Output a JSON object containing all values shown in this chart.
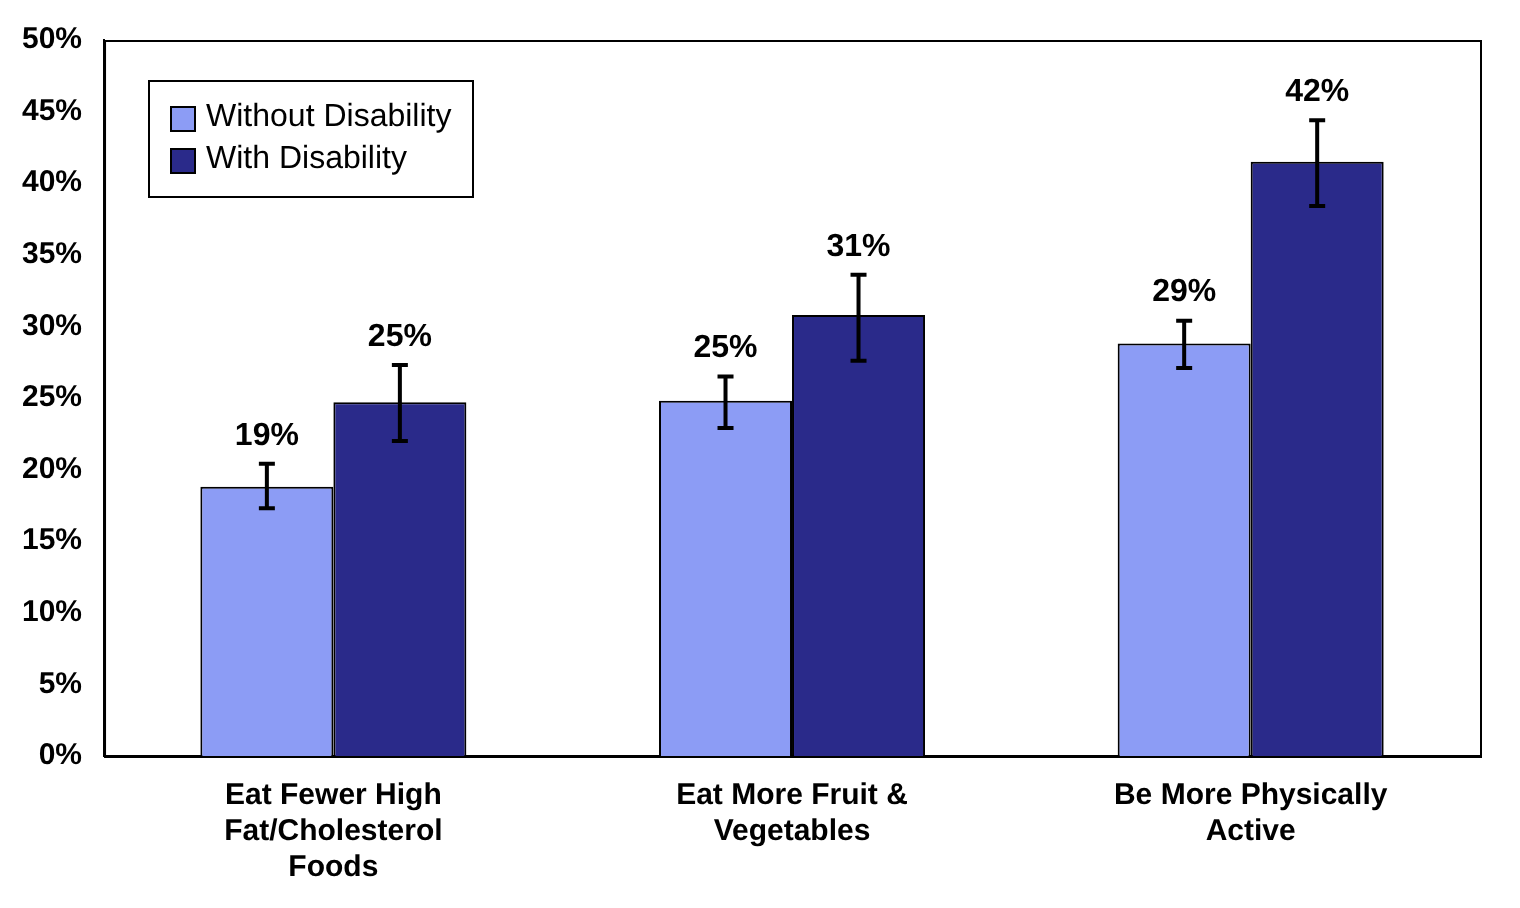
{
  "chart_data": {
    "type": "bar",
    "categories": [
      "Eat Fewer High Fat/Cholesterol Foods",
      "Eat More Fruit & Vegetables",
      "Be More Physically Active"
    ],
    "series": [
      {
        "name": "Without Disability",
        "color": "#8c9cf5",
        "values": [
          18.8,
          24.8,
          28.8
        ],
        "errors": [
          [
            17.3,
            20.4
          ],
          [
            22.9,
            26.5
          ],
          [
            27.1,
            30.4
          ]
        ],
        "value_labels": [
          "19%",
          "25%",
          "29%"
        ]
      },
      {
        "name": "With Disability",
        "color": "#2a2a8a",
        "values": [
          24.7,
          30.8,
          41.5
        ],
        "errors": [
          [
            22.0,
            27.3
          ],
          [
            27.6,
            33.6
          ],
          [
            38.4,
            44.4
          ]
        ],
        "value_labels": [
          "25%",
          "31%",
          "42%"
        ]
      }
    ],
    "ylim": [
      0,
      50
    ],
    "yticks": [
      {
        "value": 0,
        "label": "0%"
      },
      {
        "value": 5,
        "label": "5%"
      },
      {
        "value": 10,
        "label": "10%"
      },
      {
        "value": 15,
        "label": "15%"
      },
      {
        "value": 20,
        "label": "20%"
      },
      {
        "value": 25,
        "label": "25%"
      },
      {
        "value": 30,
        "label": "30%"
      },
      {
        "value": 35,
        "label": "35%"
      },
      {
        "value": 40,
        "label": "40%"
      },
      {
        "value": 45,
        "label": "45%"
      },
      {
        "value": 50,
        "label": "50%"
      }
    ],
    "grid": false,
    "legend": "top left"
  }
}
